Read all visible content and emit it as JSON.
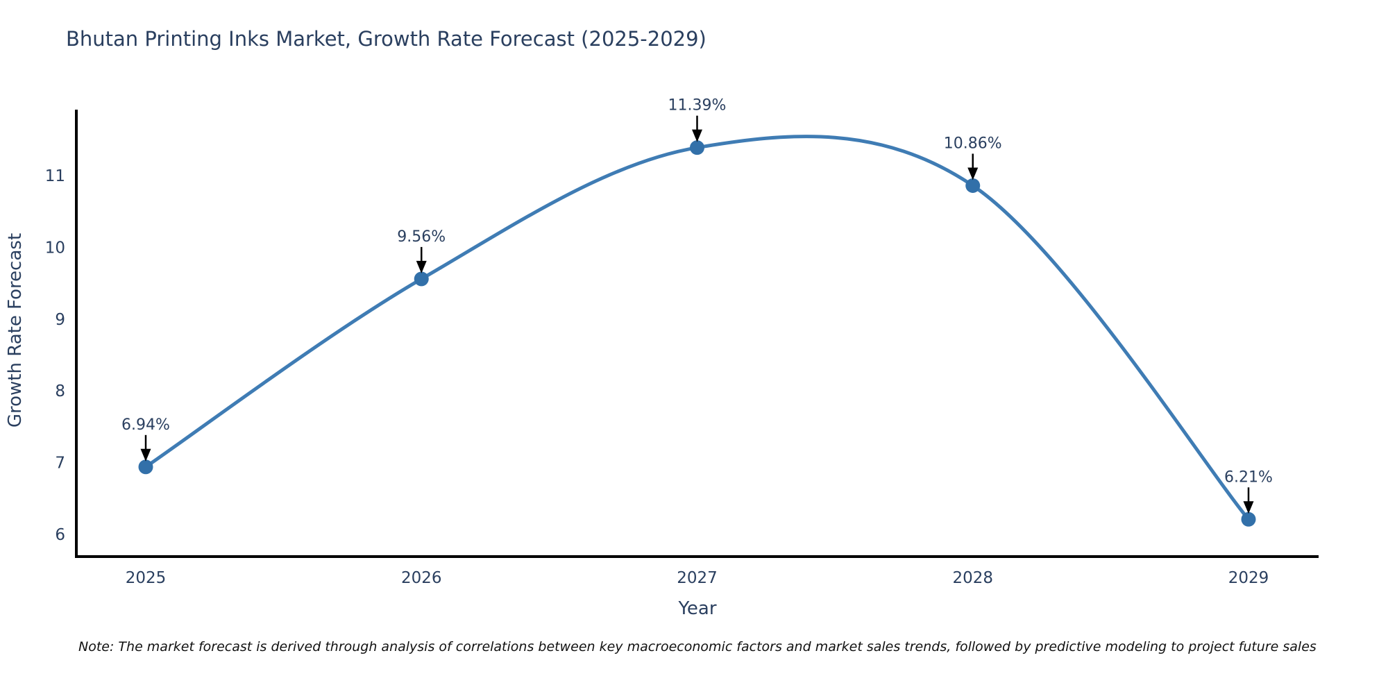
{
  "title": "Bhutan Printing Inks Market, Growth Rate Forecast (2025-2029)",
  "note": "Note: The market forecast is derived through analysis of correlations between key macroeconomic factors and market sales trends, followed by predictive modeling to project future sales",
  "chart_data": {
    "type": "line",
    "line_shape": "spline",
    "categories": [
      "2025",
      "2026",
      "2027",
      "2028",
      "2029"
    ],
    "series": [
      {
        "name": "Growth Rate Forecast",
        "values": [
          6.94,
          9.56,
          11.39,
          10.86,
          6.21
        ]
      }
    ],
    "point_labels": [
      "6.94%",
      "9.56%",
      "11.39%",
      "10.86%",
      "6.21%"
    ],
    "title": "Bhutan Printing Inks Market, Growth Rate Forecast (2025-2029)",
    "xlabel": "Year",
    "ylabel": "Growth Rate Forecast",
    "yticks": [
      6,
      7,
      8,
      9,
      10,
      11
    ],
    "ylim": [
      5.7,
      11.9
    ],
    "grid": false,
    "legend": "none",
    "annotations_arrow": "down",
    "colors": {
      "line": "#3f7cb4",
      "marker": "#3270a9",
      "arrow": "#000000",
      "text": "#2a3f5f",
      "axis": "#000000",
      "background": "#ffffff"
    }
  }
}
